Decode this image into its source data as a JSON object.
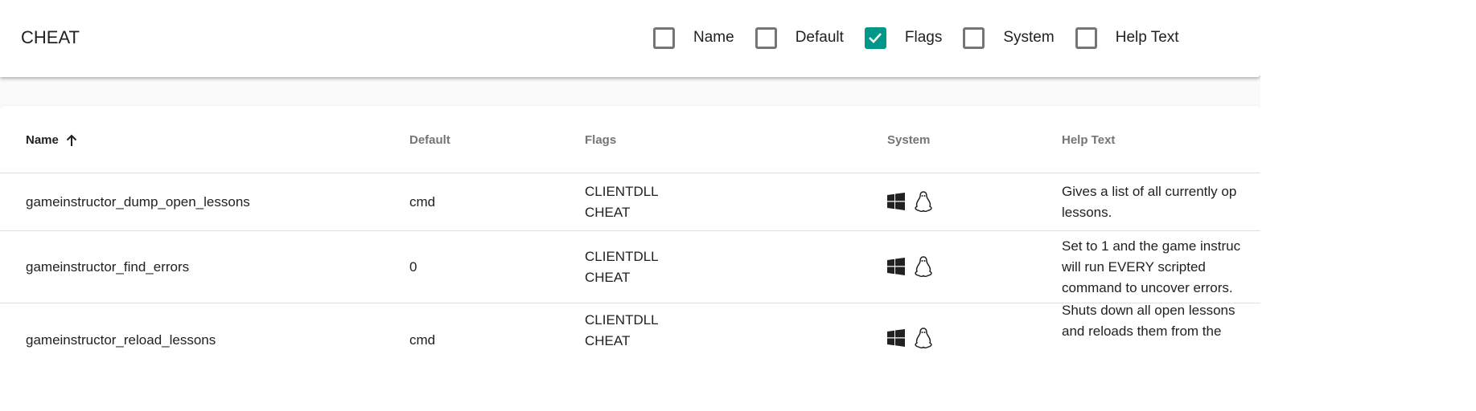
{
  "header": {
    "title": "CHEAT",
    "filters": [
      {
        "label": "Name",
        "checked": false
      },
      {
        "label": "Default",
        "checked": false
      },
      {
        "label": "Flags",
        "checked": true
      },
      {
        "label": "System",
        "checked": false
      },
      {
        "label": "Help Text",
        "checked": false
      }
    ]
  },
  "table": {
    "columns": [
      "Name",
      "Default",
      "Flags",
      "System",
      "Help Text"
    ],
    "sort": {
      "column": "Name",
      "direction": "ascending"
    },
    "rows": [
      {
        "name": "gameinstructor_dump_open_lessons",
        "default": "cmd",
        "flags": [
          "CLIENTDLL",
          "CHEAT"
        ],
        "system": [
          "windows-icon",
          "linux-icon"
        ],
        "help": [
          "Gives a list of all currently op",
          "lessons."
        ]
      },
      {
        "name": "gameinstructor_find_errors",
        "default": "0",
        "flags": [
          "CLIENTDLL",
          "CHEAT"
        ],
        "system": [
          "windows-icon",
          "linux-icon"
        ],
        "help": [
          "Set to 1 and the game instruc",
          "will run EVERY scripted",
          "command to uncover errors."
        ]
      },
      {
        "name": "gameinstructor_reload_lessons",
        "default": "cmd",
        "flags": [
          "CLIENTDLL",
          "CHEAT"
        ],
        "system": [
          "windows-icon",
          "linux-icon"
        ],
        "help": [
          "Shuts down all open lessons",
          "and reloads them from the"
        ]
      }
    ]
  },
  "colors": {
    "accent": "#009688"
  }
}
